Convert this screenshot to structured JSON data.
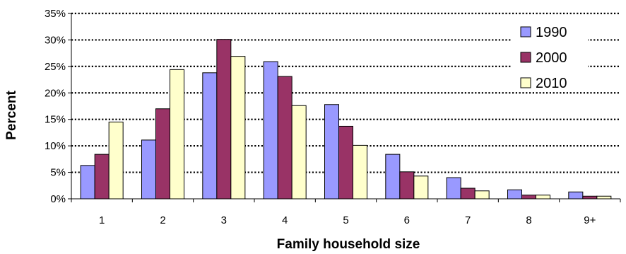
{
  "chart_data": {
    "type": "bar",
    "title": "",
    "xlabel": "Family household size",
    "ylabel": "Percent",
    "categories": [
      "1",
      "2",
      "3",
      "4",
      "5",
      "6",
      "7",
      "8",
      "9+"
    ],
    "series": [
      {
        "name": "1990",
        "color": "#9999ff",
        "values": [
          6.3,
          11.1,
          23.8,
          25.9,
          17.8,
          8.4,
          4.0,
          1.7,
          1.3
        ]
      },
      {
        "name": "2000",
        "color": "#993366",
        "values": [
          8.4,
          17.0,
          30.1,
          23.1,
          13.7,
          5.1,
          2.0,
          0.7,
          0.5
        ]
      },
      {
        "name": "2010",
        "color": "#ffffcc",
        "values": [
          14.5,
          24.4,
          26.9,
          17.6,
          10.1,
          4.3,
          1.5,
          0.7,
          0.5
        ]
      }
    ],
    "ylim": [
      0,
      35
    ],
    "yticks": [
      "0%",
      "5%",
      "10%",
      "15%",
      "20%",
      "25%",
      "30%",
      "35%"
    ],
    "grid": "dotted horizontal",
    "legend": "top-right"
  }
}
